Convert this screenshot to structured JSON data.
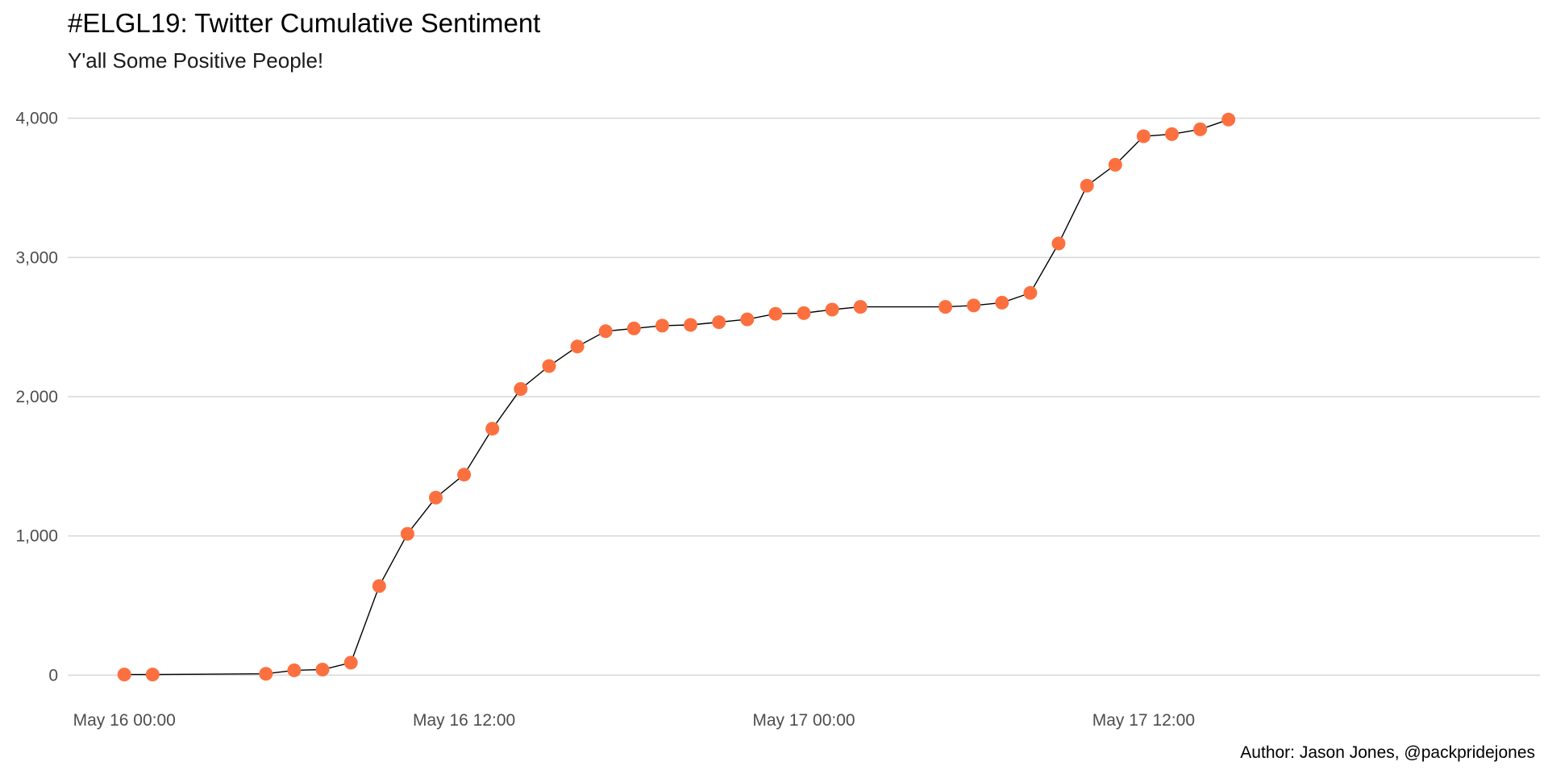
{
  "chart_data": {
    "type": "line",
    "title": "#ELGL19: Twitter Cumulative Sentiment",
    "subtitle": "Y'all Some Positive People!",
    "caption": "Author: Jason Jones, @packpridejones",
    "xlabel": "",
    "ylabel": "",
    "x_ticks": [
      {
        "value": "2019-05-16T00:00",
        "label": "May 16 00:00"
      },
      {
        "value": "2019-05-16T12:00",
        "label": "May 16 12:00"
      },
      {
        "value": "2019-05-17T00:00",
        "label": "May 17 00:00"
      },
      {
        "value": "2019-05-17T12:00",
        "label": "May 17 12:00"
      }
    ],
    "y_ticks": [
      {
        "value": 0,
        "label": "0"
      },
      {
        "value": 1000,
        "label": "1,000"
      },
      {
        "value": 2000,
        "label": "2,000"
      },
      {
        "value": 3000,
        "label": "3,000"
      },
      {
        "value": 4000,
        "label": "4,000"
      }
    ],
    "xlim": [
      "2019-05-15T22:00",
      "2019-05-18T02:00"
    ],
    "ylim": [
      -200,
      4200
    ],
    "grid": "horizontal",
    "point_color": "#FC7040",
    "line_color": "#000000",
    "x": [
      "2019-05-16T00:00",
      "2019-05-16T01:00",
      "2019-05-16T05:00",
      "2019-05-16T06:00",
      "2019-05-16T07:00",
      "2019-05-16T08:00",
      "2019-05-16T09:00",
      "2019-05-16T10:00",
      "2019-05-16T11:00",
      "2019-05-16T12:00",
      "2019-05-16T13:00",
      "2019-05-16T14:00",
      "2019-05-16T15:00",
      "2019-05-16T16:00",
      "2019-05-16T17:00",
      "2019-05-16T18:00",
      "2019-05-16T19:00",
      "2019-05-16T20:00",
      "2019-05-16T21:00",
      "2019-05-16T22:00",
      "2019-05-16T23:00",
      "2019-05-17T00:00",
      "2019-05-17T01:00",
      "2019-05-17T02:00",
      "2019-05-17T05:00",
      "2019-05-17T06:00",
      "2019-05-17T07:00",
      "2019-05-17T08:00",
      "2019-05-17T09:00",
      "2019-05-17T10:00",
      "2019-05-17T11:00",
      "2019-05-17T12:00",
      "2019-05-17T13:00",
      "2019-05-17T14:00",
      "2019-05-17T15:00"
    ],
    "y": [
      5,
      5,
      10,
      35,
      40,
      90,
      640,
      1015,
      1275,
      1440,
      1770,
      2055,
      2220,
      2360,
      2470,
      2490,
      2510,
      2515,
      2535,
      2555,
      2595,
      2600,
      2625,
      2645,
      2645,
      2655,
      2675,
      2745,
      3100,
      3515,
      3665,
      3870,
      3885,
      3920,
      3990
    ]
  }
}
